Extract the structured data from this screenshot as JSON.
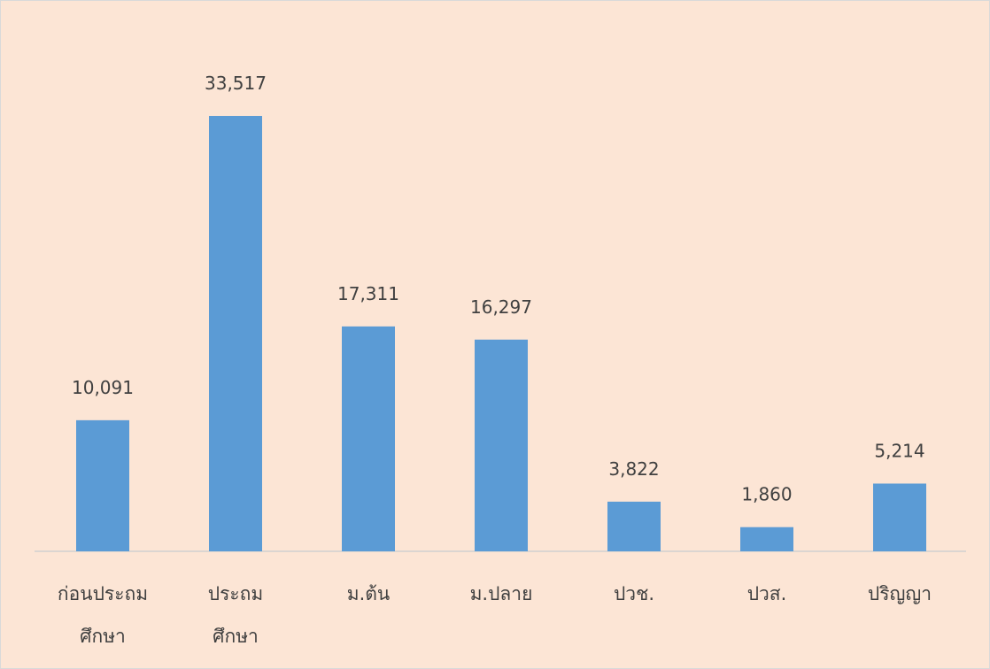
{
  "chart_data": {
    "type": "bar",
    "categories": [
      "ก่อนประถม\nศึกษา",
      "ประถม\nศึกษา",
      "ม.ต้น",
      "ม.ปลาย",
      "ปวช.",
      "ปวส.",
      "ปริญญา"
    ],
    "values": [
      10091,
      33517,
      17311,
      16297,
      3822,
      1860,
      5214
    ],
    "value_labels": [
      "10,091",
      "33,517",
      "17,311",
      "16,297",
      "3,822",
      "1,860",
      "5,214"
    ],
    "color": "#5b9bd5"
  }
}
